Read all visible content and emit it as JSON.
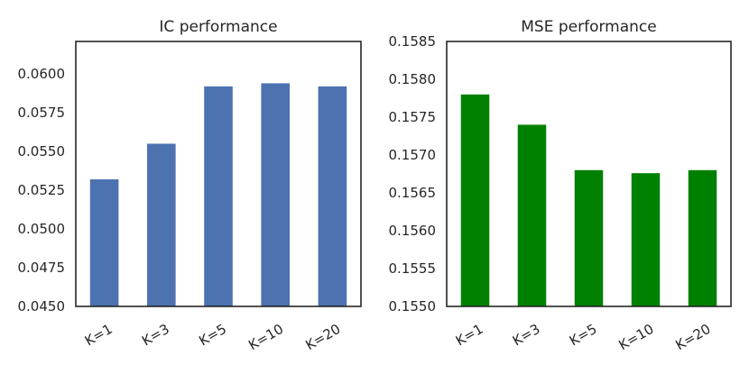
{
  "chart_data": [
    {
      "type": "bar",
      "title": "IC performance",
      "xlabel": "",
      "ylabel": "",
      "categories": [
        "K=1",
        "K=3",
        "K=5",
        "K=10",
        "K=20"
      ],
      "values": [
        0.0532,
        0.0555,
        0.0592,
        0.0594,
        0.0592
      ],
      "ylim": [
        0.045,
        0.0621
      ],
      "yticks": [
        0.045,
        0.0475,
        0.05,
        0.0525,
        0.055,
        0.0575,
        0.06
      ],
      "ytick_labels": [
        "0.0450",
        "0.0475",
        "0.0500",
        "0.0525",
        "0.0550",
        "0.0575",
        "0.0600"
      ],
      "color": "#4c72b0",
      "grid": false
    },
    {
      "type": "bar",
      "title": "MSE performance",
      "xlabel": "",
      "ylabel": "",
      "categories": [
        "K=1",
        "K=3",
        "K=5",
        "K=10",
        "K=20"
      ],
      "values": [
        0.1578,
        0.1574,
        0.1568,
        0.15676,
        0.1568
      ],
      "ylim": [
        0.155,
        0.1585
      ],
      "yticks": [
        0.155,
        0.1555,
        0.156,
        0.1565,
        0.157,
        0.1575,
        0.158,
        0.1585
      ],
      "ytick_labels": [
        "0.1550",
        "0.1555",
        "0.1560",
        "0.1565",
        "0.1570",
        "0.1575",
        "0.1580",
        "0.1585"
      ],
      "color": "#008000",
      "grid": false
    }
  ]
}
